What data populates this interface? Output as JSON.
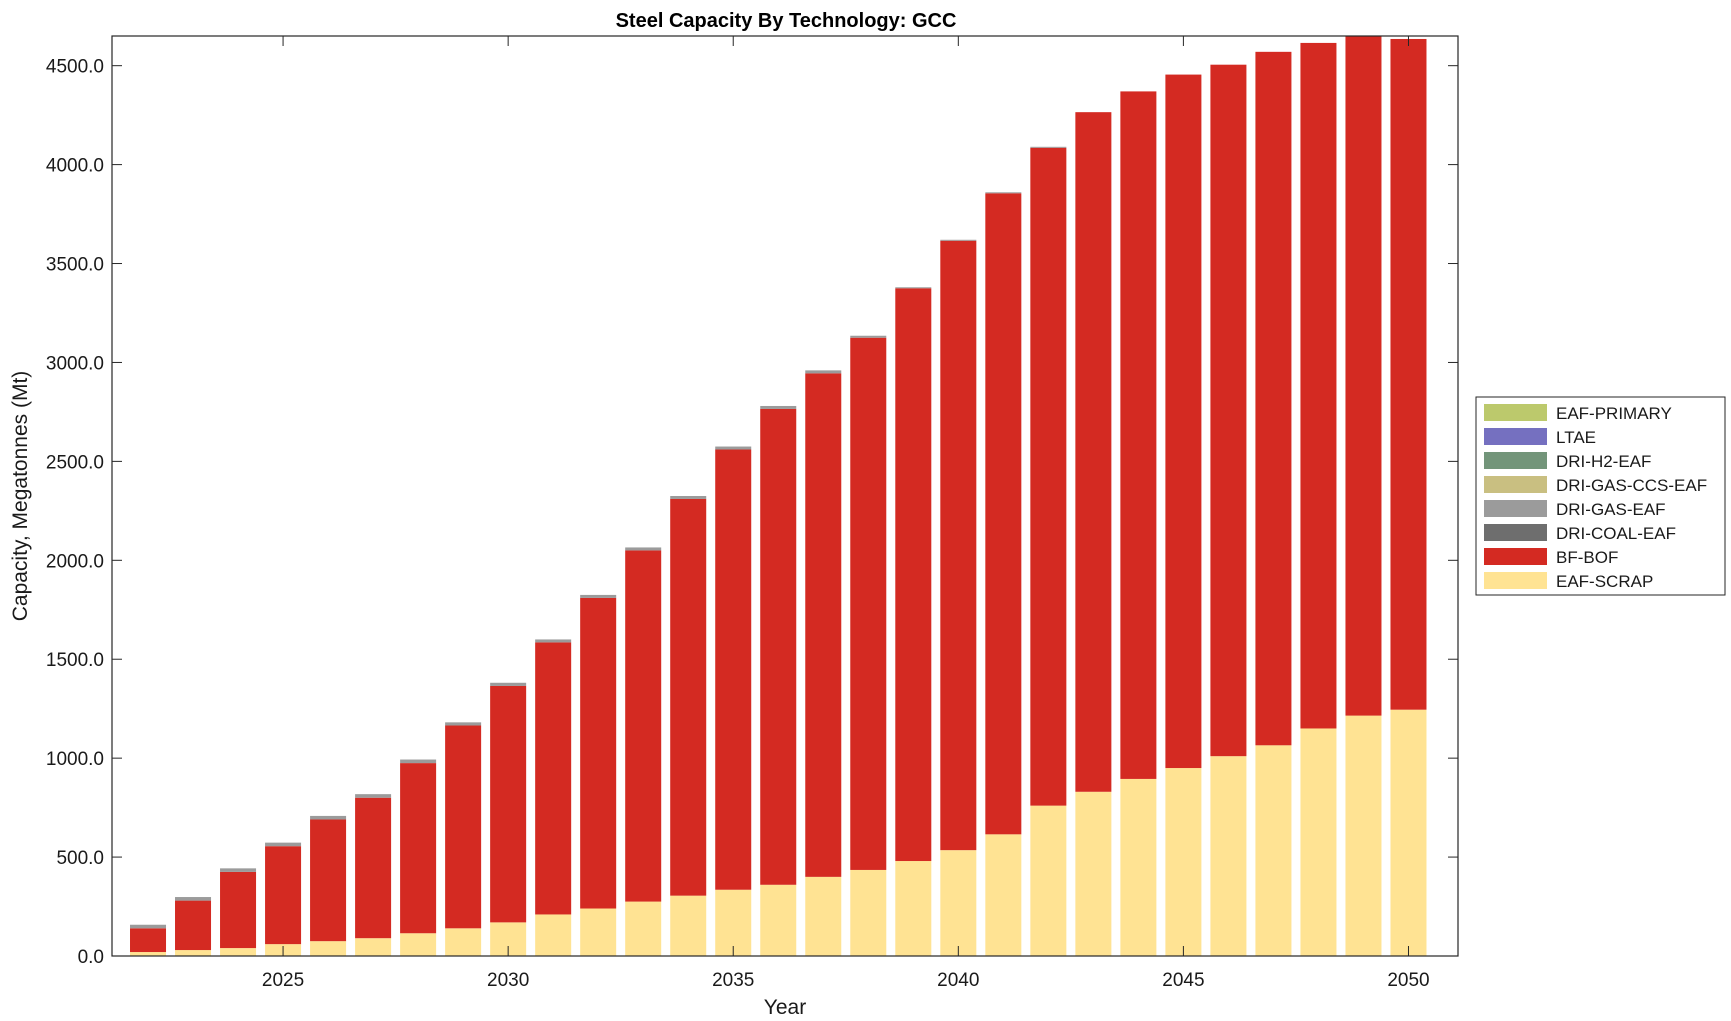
{
  "chart_data": {
    "type": "bar",
    "stacked": true,
    "title": "Steel Capacity By Technology: GCC",
    "xlabel": "Year",
    "ylabel": "Capacity, Megatonnes (Mt)",
    "x": [
      2022,
      2023,
      2024,
      2025,
      2026,
      2027,
      2028,
      2029,
      2030,
      2031,
      2032,
      2033,
      2034,
      2035,
      2036,
      2037,
      2038,
      2039,
      2040,
      2041,
      2042,
      2043,
      2044,
      2045,
      2046,
      2047,
      2048,
      2049,
      2050
    ],
    "xlim": [
      2021.2,
      2051.1
    ],
    "ylim": [
      0,
      4650
    ],
    "xticks": [
      2025,
      2030,
      2035,
      2040,
      2045,
      2050
    ],
    "yticks": [
      0,
      500,
      1000,
      1500,
      2000,
      2500,
      3000,
      3500,
      4000,
      4500
    ],
    "ytick_labels": [
      "0.0",
      "500.0",
      "1000.0",
      "1500.0",
      "2000.0",
      "2500.0",
      "3000.0",
      "3500.0",
      "4000.0",
      "4500.0"
    ],
    "grid": false,
    "legend_position": "right",
    "series": [
      {
        "name": "EAF-SCRAP",
        "color": "#ffe393",
        "values": [
          20,
          30,
          40,
          60,
          75,
          90,
          115,
          140,
          170,
          210,
          240,
          275,
          305,
          335,
          360,
          400,
          435,
          480,
          535,
          615,
          760,
          830,
          895,
          950,
          1010,
          1065,
          1150,
          1215,
          1245
        ]
      },
      {
        "name": "BF-BOF",
        "color": "#d42a22",
        "values": [
          120,
          250,
          385,
          495,
          615,
          710,
          860,
          1025,
          1195,
          1375,
          1570,
          1775,
          2005,
          2225,
          2405,
          2545,
          2690,
          2895,
          3080,
          3240,
          3325,
          3435,
          3475,
          3505,
          3495,
          3505,
          3465,
          3435,
          3390
        ]
      },
      {
        "name": "DRI-COAL-EAF",
        "color": "#6e6e6e",
        "values": [
          0,
          0,
          0,
          0,
          0,
          0,
          0,
          0,
          0,
          0,
          0,
          0,
          0,
          0,
          0,
          0,
          0,
          0,
          0,
          0,
          0,
          0,
          0,
          0,
          0,
          0,
          0,
          0,
          0
        ]
      },
      {
        "name": "DRI-GAS-EAF",
        "color": "#9b9b9b",
        "values": [
          18,
          18,
          18,
          18,
          18,
          18,
          18,
          16,
          16,
          15,
          15,
          15,
          15,
          15,
          15,
          15,
          10,
          5,
          5,
          5,
          5,
          0,
          0,
          0,
          0,
          0,
          0,
          0,
          0
        ]
      },
      {
        "name": "DRI-GAS-CCS-EAF",
        "color": "#c9bf81",
        "values": [
          0,
          0,
          0,
          0,
          0,
          0,
          0,
          0,
          0,
          0,
          0,
          0,
          0,
          0,
          0,
          0,
          0,
          0,
          0,
          0,
          0,
          0,
          0,
          0,
          0,
          0,
          0,
          0,
          0
        ]
      },
      {
        "name": "DRI-H2-EAF",
        "color": "#73957a",
        "values": [
          0,
          0,
          0,
          0,
          0,
          0,
          0,
          0,
          0,
          0,
          0,
          0,
          0,
          0,
          0,
          0,
          0,
          0,
          0,
          0,
          0,
          0,
          0,
          0,
          0,
          0,
          0,
          0,
          0
        ]
      },
      {
        "name": "LTAE",
        "color": "#7570c0",
        "values": [
          0,
          0,
          0,
          0,
          0,
          0,
          0,
          0,
          0,
          0,
          0,
          0,
          0,
          0,
          0,
          0,
          0,
          0,
          0,
          0,
          0,
          0,
          0,
          0,
          0,
          0,
          0,
          0,
          0
        ]
      },
      {
        "name": "EAF-PRIMARY",
        "color": "#bcc96c",
        "values": [
          0,
          0,
          0,
          0,
          0,
          0,
          0,
          0,
          0,
          0,
          0,
          0,
          0,
          0,
          0,
          0,
          0,
          0,
          0,
          0,
          0,
          0,
          0,
          0,
          0,
          0,
          0,
          0,
          0
        ]
      }
    ],
    "legend_order": [
      "EAF-PRIMARY",
      "LTAE",
      "DRI-H2-EAF",
      "DRI-GAS-CCS-EAF",
      "DRI-GAS-EAF",
      "DRI-COAL-EAF",
      "BF-BOF",
      "EAF-SCRAP"
    ]
  }
}
